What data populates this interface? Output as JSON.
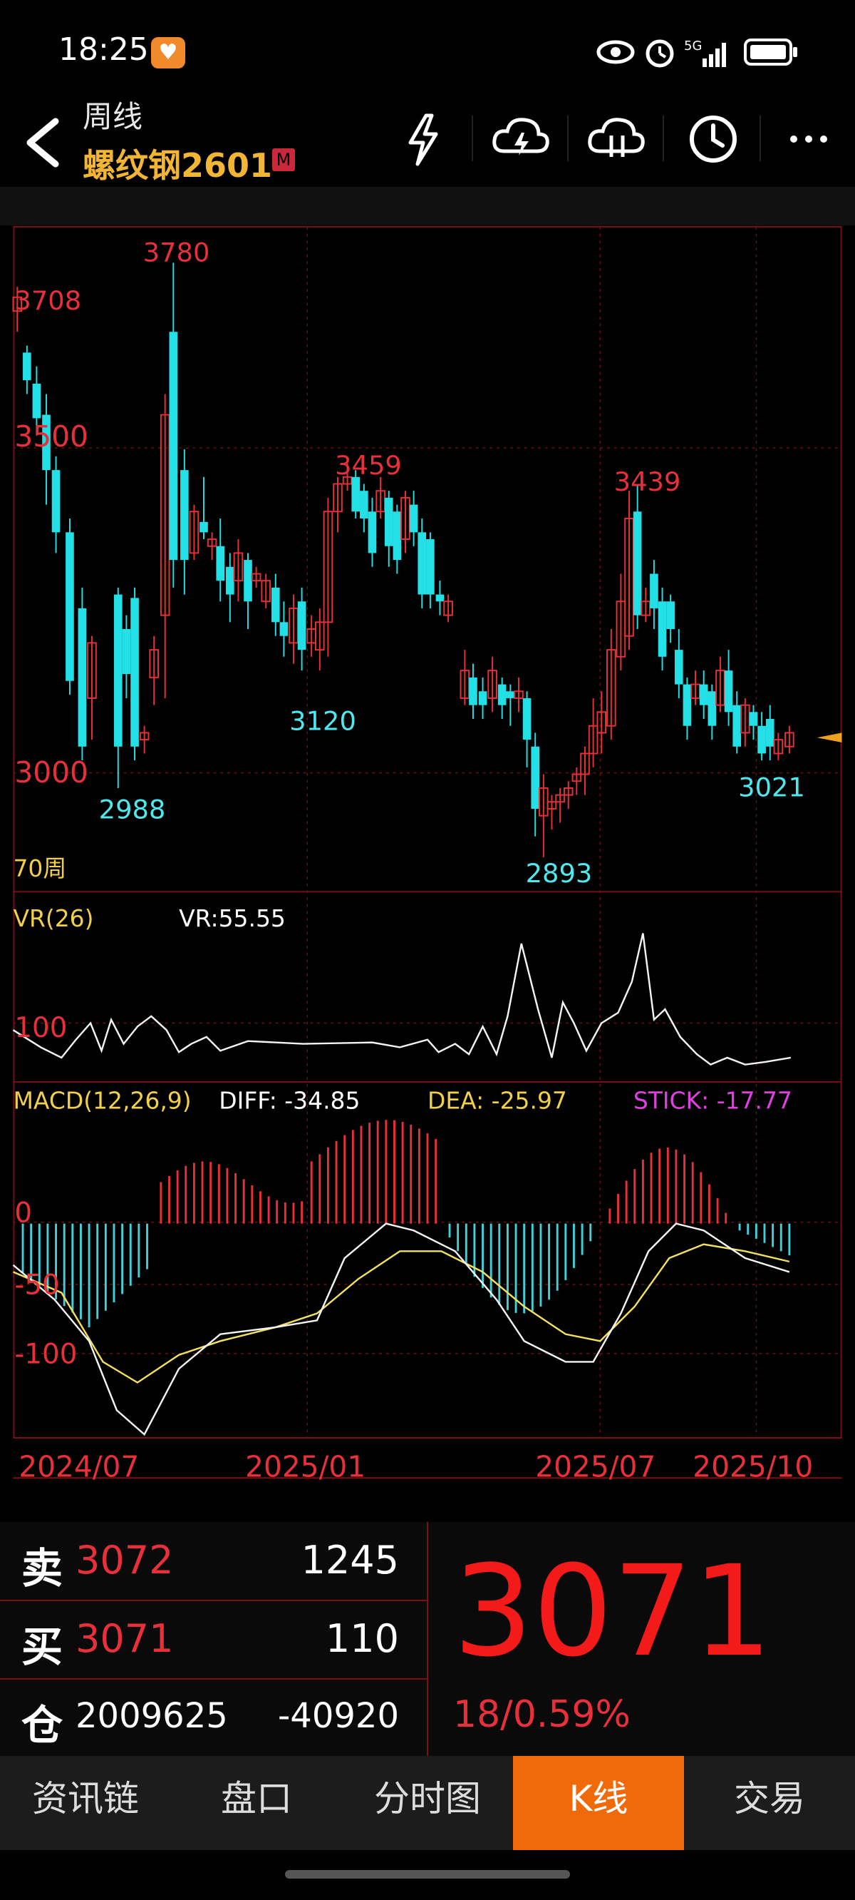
{
  "status_bar": {
    "time": "18:25",
    "network": "5G"
  },
  "header": {
    "period": "周线",
    "instrument": "螺纹钢2601",
    "badge": "M",
    "icons": [
      "lightning-icon",
      "cloud-lightning-icon",
      "cloud-sync-icon",
      "clock-icon",
      "more-icon"
    ]
  },
  "chart": {
    "price_labels": {
      "p3708": "3708",
      "p3780": "3780",
      "p3500": "3500",
      "p3459": "3459",
      "p3439": "3439",
      "p3120": "3120",
      "p3000": "3000",
      "p2988": "2988",
      "p2893": "2893",
      "p3021": "3021"
    },
    "weeks_label": "70周",
    "vr": {
      "title": "VR(26)",
      "value_label": "VR:55.55",
      "level": "100"
    },
    "macd": {
      "title": "MACD(12,26,9)",
      "diff": "DIFF: -34.85",
      "dea": "DEA: -25.97",
      "stick": "STICK: -17.77",
      "zero": "0",
      "m50": "-50",
      "m100": "-100"
    },
    "x_labels": [
      "2024/07",
      "2025/01",
      "2025/07",
      "2025/10"
    ]
  },
  "chart_data": {
    "type": "candlestick",
    "period": "weekly",
    "visible_weeks": 70,
    "price_axis": [
      3000,
      3500
    ],
    "high": 3780,
    "low": 2893,
    "marked_points": [
      3708,
      3780,
      3459,
      3439,
      3120,
      2988,
      2893,
      3021
    ],
    "vr": 55.55,
    "macd": {
      "diff": -34.85,
      "dea": -25.97,
      "stick": -17.77
    },
    "x_ticks": [
      "2024/07",
      "2025/01",
      "2025/07",
      "2025/10"
    ]
  },
  "orderbook": {
    "sell": {
      "label": "卖",
      "price": "3072",
      "volume": "1245"
    },
    "buy": {
      "label": "买",
      "price": "3071",
      "volume": "110"
    },
    "position": {
      "label": "仓",
      "value": "2009625",
      "change": "-40920"
    },
    "last_price": "3071",
    "change": "18/0.59%"
  },
  "nav": {
    "items": [
      "资讯链",
      "盘口",
      "分时图",
      "K线",
      "交易"
    ]
  },
  "colors": {
    "up": "#e8303a",
    "down": "#22e0e6",
    "accent": "#f06a0a",
    "instrument": "#f2b634"
  }
}
